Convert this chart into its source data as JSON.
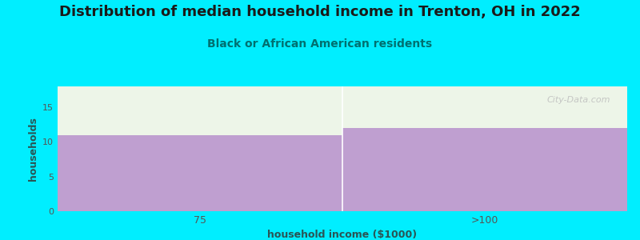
{
  "title": "Distribution of median household income in Trenton, OH in 2022",
  "subtitle": "Black or African American residents",
  "xlabel": "household income ($1000)",
  "ylabel": "households",
  "categories": [
    "75",
    ">100"
  ],
  "values": [
    11,
    12
  ],
  "ylim": [
    0,
    18
  ],
  "yticks": [
    0,
    5,
    10,
    15
  ],
  "bar_color": "#bf9fd0",
  "top_area_color": "#edf5e8",
  "background_color": "#00eeff",
  "plot_bg_color": "#edf5e8",
  "title_color": "#1a1a1a",
  "subtitle_color": "#007070",
  "axis_label_color": "#2a5555",
  "tick_color": "#555555",
  "watermark": "City-Data.com",
  "title_fontsize": 13,
  "subtitle_fontsize": 10,
  "label_fontsize": 9,
  "divider_color": "#ffffff"
}
